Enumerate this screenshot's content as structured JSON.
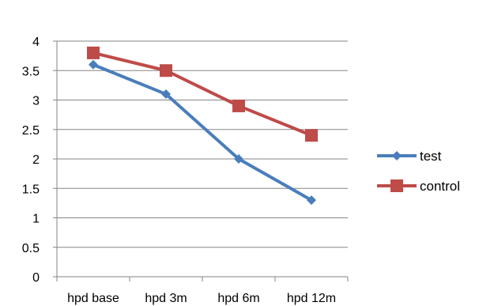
{
  "chart_data": {
    "type": "line",
    "title": "",
    "xlabel": "",
    "ylabel": "",
    "categories": [
      "hpd base",
      "hpd 3m",
      "hpd 6m",
      "hpd 12m"
    ],
    "ylim": [
      0,
      4
    ],
    "yticks": [
      "0",
      "0.5",
      "1",
      "1.5",
      "2",
      "2.5",
      "3",
      "3.5",
      "4"
    ],
    "grid": true,
    "legend_position": "right",
    "series": [
      {
        "name": "test",
        "values": [
          3.6,
          3.1,
          2.0,
          1.3
        ],
        "color": "#4a7ebb",
        "marker": "diamond"
      },
      {
        "name": "control",
        "values": [
          3.8,
          3.5,
          2.9,
          2.4
        ],
        "color": "#be4b48",
        "marker": "square"
      }
    ]
  }
}
